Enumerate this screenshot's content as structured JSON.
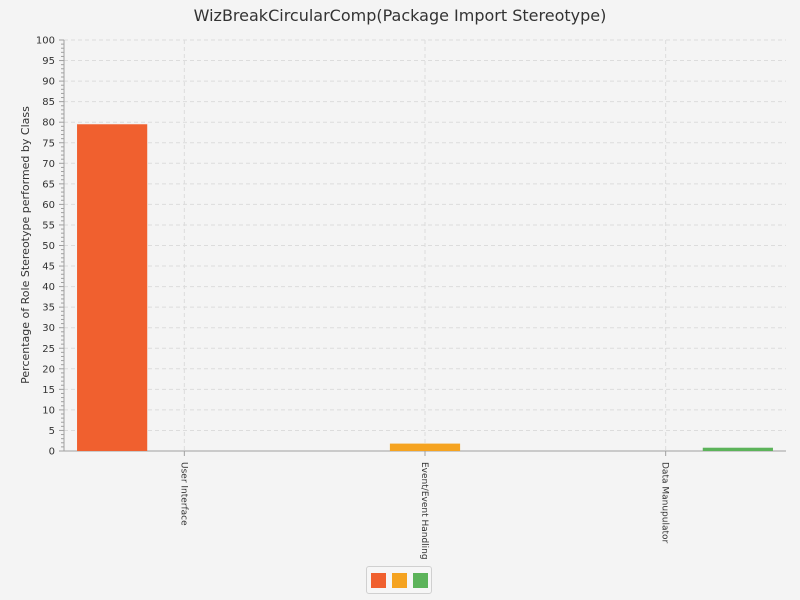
{
  "chart_data": {
    "type": "bar",
    "title": "WizBreakCircularComp(Package Import Stereotype)",
    "xlabel": "",
    "ylabel": "Percentage of Role Stereotype performed by Class",
    "categories": [
      "User Interface",
      "Event/Event Handling",
      "Data Manupulator"
    ],
    "series": [
      {
        "values": [
          79.5,
          0,
          0
        ],
        "color": "#f0602f"
      },
      {
        "values": [
          0,
          1.8,
          0
        ],
        "color": "#f5a320"
      },
      {
        "values": [
          0,
          0,
          0.8
        ],
        "color": "#5cb35a"
      }
    ],
    "ylim": [
      0,
      100
    ],
    "yticks": [
      0,
      5,
      10,
      15,
      20,
      25,
      30,
      35,
      40,
      45,
      50,
      55,
      60,
      65,
      70,
      75,
      80,
      85,
      90,
      95,
      100
    ],
    "grid": true,
    "legend": "bottom-center"
  }
}
